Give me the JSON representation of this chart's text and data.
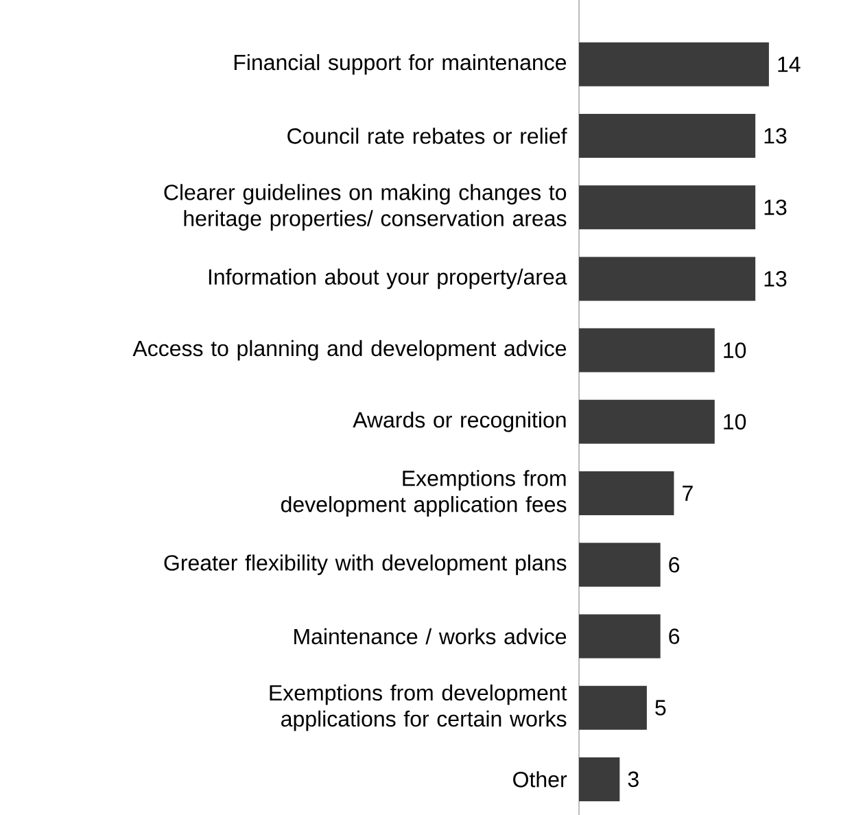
{
  "chart_data": {
    "type": "bar",
    "orientation": "horizontal",
    "data_labels": true,
    "color": "#3b3b3b",
    "categories": [
      "Financial support for maintenance",
      "Council rate rebates or relief",
      "Clearer guidelines on making changes to heritage properties/ conservation areas",
      "Information about your property/area",
      "Access to planning and development advice",
      "Awards or recognition",
      "Exemptions from development application fees",
      "Greater flexibility with development plans",
      "Maintenance / works advice",
      "Exemptions from development applications for certain works",
      "Other"
    ],
    "values": [
      14,
      13,
      13,
      13,
      10,
      10,
      7,
      6,
      6,
      5,
      3
    ]
  }
}
